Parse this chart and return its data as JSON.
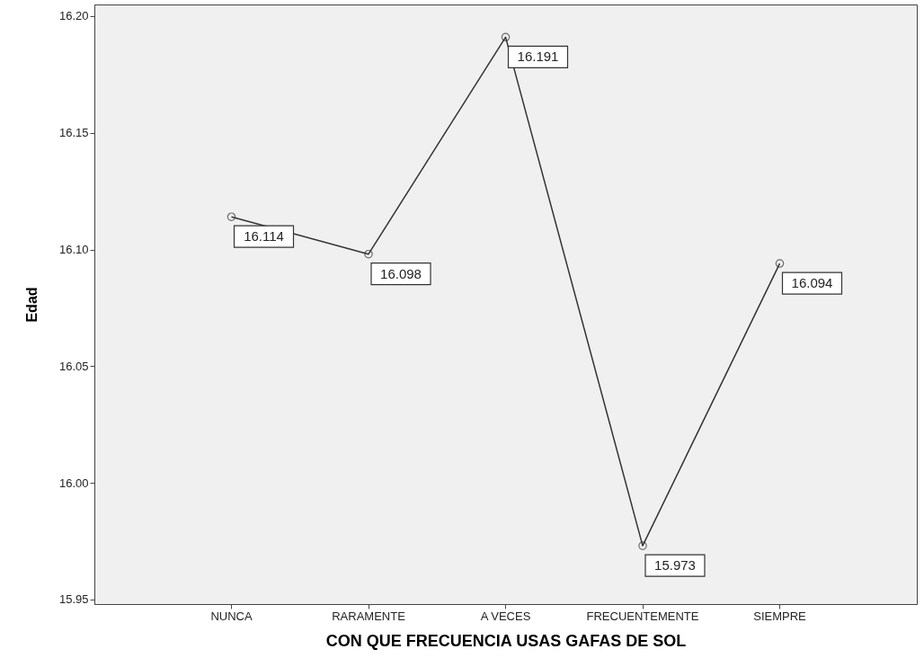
{
  "chart_data": {
    "type": "line",
    "xlabel": "CON QUE FRECUENCIA USAS GAFAS DE SOL",
    "ylabel": "Edad",
    "categories": [
      "NUNCA",
      "RARAMENTE",
      "A VECES",
      "FRECUENTEMENTE",
      "SIEMPRE"
    ],
    "series": [
      {
        "color": "#333333",
        "values": [
          16.114,
          16.098,
          16.191,
          15.973,
          16.094
        ]
      }
    ],
    "ylim": [
      15.948,
      16.205
    ],
    "yticks": [
      15.95,
      {
        "value": 16.0,
        "label": "16.00"
      },
      16.05,
      {
        "value": 16.1,
        "label": "16.10"
      },
      16.15,
      {
        "value": 16.2,
        "label": "16.20"
      }
    ],
    "data_labels": true,
    "marker": "circle",
    "grid": false
  }
}
